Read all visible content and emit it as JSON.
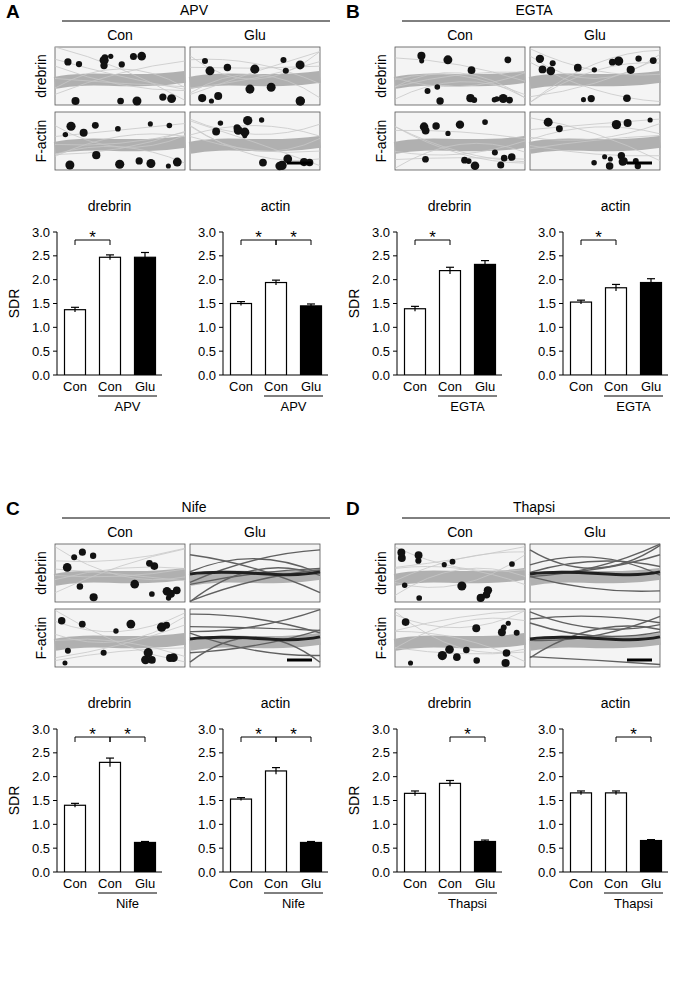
{
  "panels": [
    {
      "letter": "A",
      "treatment": "APV",
      "columns": [
        "Con",
        "Glu"
      ],
      "rows": [
        "drebrin",
        "F-actin"
      ]
    },
    {
      "letter": "B",
      "treatment": "EGTA",
      "columns": [
        "Con",
        "Glu"
      ],
      "rows": [
        "drebrin",
        "F-actin"
      ]
    },
    {
      "letter": "C",
      "treatment": "Nife",
      "columns": [
        "Con",
        "Glu"
      ],
      "rows": [
        "drebrin",
        "F-actin"
      ]
    },
    {
      "letter": "D",
      "treatment": "Thapsi",
      "columns": [
        "Con",
        "Glu"
      ],
      "rows": [
        "drebrin",
        "F-actin"
      ]
    }
  ],
  "chart_data": [
    {
      "type": "bar",
      "title": "drebrin",
      "y_label": "SDR",
      "categories": [
        "Con",
        "Con",
        "Glu"
      ],
      "values": [
        1.37,
        2.47,
        2.47
      ],
      "errors": [
        0.05,
        0.05,
        0.1
      ],
      "colors": [
        "#ffffff",
        "#ffffff",
        "#000000"
      ],
      "group": {
        "label": "APV",
        "from": 1,
        "to": 2
      },
      "annotations": [
        {
          "from": 0,
          "to": 1,
          "label": "*"
        }
      ],
      "ylim": [
        0,
        3
      ],
      "yticks": [
        {
          "value": 0,
          "label": "0.0"
        },
        0.5,
        {
          "value": 1,
          "label": "1.0"
        },
        1.5,
        {
          "value": 2,
          "label": "2.0"
        },
        2.5,
        {
          "value": 3,
          "label": "3.0"
        }
      ]
    },
    {
      "type": "bar",
      "title": "actin",
      "categories": [
        "Con",
        "Con",
        "Glu"
      ],
      "values": [
        1.5,
        1.94,
        1.45
      ],
      "errors": [
        0.04,
        0.05,
        0.04
      ],
      "colors": [
        "#ffffff",
        "#ffffff",
        "#000000"
      ],
      "group": {
        "label": "APV",
        "from": 1,
        "to": 2
      },
      "annotations": [
        {
          "from": 0,
          "to": 1,
          "label": "*"
        },
        {
          "from": 1,
          "to": 2,
          "label": "*"
        }
      ],
      "ylim": [
        0,
        3
      ],
      "yticks": [
        {
          "value": 0,
          "label": "0.0"
        },
        0.5,
        {
          "value": 1,
          "label": "1.0"
        },
        1.5,
        {
          "value": 2,
          "label": "2.0"
        },
        2.5,
        {
          "value": 3,
          "label": "3.0"
        }
      ]
    },
    {
      "type": "bar",
      "title": "drebrin",
      "y_label": "SDR",
      "categories": [
        "Con",
        "Con",
        "Glu"
      ],
      "values": [
        1.39,
        2.19,
        2.32
      ],
      "errors": [
        0.05,
        0.07,
        0.08
      ],
      "colors": [
        "#ffffff",
        "#ffffff",
        "#000000"
      ],
      "group": {
        "label": "EGTA",
        "from": 1,
        "to": 2
      },
      "annotations": [
        {
          "from": 0,
          "to": 1,
          "label": "*"
        }
      ],
      "ylim": [
        0,
        3
      ],
      "yticks": [
        {
          "value": 0,
          "label": "0.0"
        },
        0.5,
        {
          "value": 1,
          "label": "1.0"
        },
        1.5,
        {
          "value": 2,
          "label": "2.0"
        },
        2.5,
        {
          "value": 3,
          "label": "3.0"
        }
      ]
    },
    {
      "type": "bar",
      "title": "actin",
      "categories": [
        "Con",
        "Con",
        "Glu"
      ],
      "values": [
        1.53,
        1.83,
        1.94
      ],
      "errors": [
        0.04,
        0.07,
        0.08
      ],
      "colors": [
        "#ffffff",
        "#ffffff",
        "#000000"
      ],
      "group": {
        "label": "EGTA",
        "from": 1,
        "to": 2
      },
      "annotations": [
        {
          "from": 0,
          "to": 1,
          "label": "*"
        }
      ],
      "ylim": [
        0,
        3
      ],
      "yticks": [
        {
          "value": 0,
          "label": "0.0"
        },
        0.5,
        {
          "value": 1,
          "label": "1.0"
        },
        1.5,
        {
          "value": 2,
          "label": "2.0"
        },
        2.5,
        {
          "value": 3,
          "label": "3.0"
        }
      ]
    },
    {
      "type": "bar",
      "title": "drebrin",
      "y_label": "SDR",
      "categories": [
        "Con",
        "Con",
        "Glu"
      ],
      "values": [
        1.4,
        2.3,
        0.62
      ],
      "errors": [
        0.04,
        0.09,
        0.02
      ],
      "colors": [
        "#ffffff",
        "#ffffff",
        "#000000"
      ],
      "group": {
        "label": "Nife",
        "from": 1,
        "to": 2
      },
      "annotations": [
        {
          "from": 0,
          "to": 1,
          "label": "*"
        },
        {
          "from": 1,
          "to": 2,
          "label": "*"
        }
      ],
      "ylim": [
        0,
        3
      ],
      "yticks": [
        {
          "value": 0,
          "label": "0.0"
        },
        0.5,
        {
          "value": 1,
          "label": "1.0"
        },
        1.5,
        {
          "value": 2,
          "label": "2.0"
        },
        2.5,
        {
          "value": 3,
          "label": "3.0"
        }
      ]
    },
    {
      "type": "bar",
      "title": "actin",
      "categories": [
        "Con",
        "Con",
        "Glu"
      ],
      "values": [
        1.53,
        2.12,
        0.62
      ],
      "errors": [
        0.03,
        0.07,
        0.02
      ],
      "colors": [
        "#ffffff",
        "#ffffff",
        "#000000"
      ],
      "group": {
        "label": "Nife",
        "from": 1,
        "to": 2
      },
      "annotations": [
        {
          "from": 0,
          "to": 1,
          "label": "*"
        },
        {
          "from": 1,
          "to": 2,
          "label": "*"
        }
      ],
      "ylim": [
        0,
        3
      ],
      "yticks": [
        {
          "value": 0,
          "label": "0.0"
        },
        0.5,
        {
          "value": 1,
          "label": "1.0"
        },
        1.5,
        {
          "value": 2,
          "label": "2.0"
        },
        2.5,
        {
          "value": 3,
          "label": "3.0"
        }
      ]
    },
    {
      "type": "bar",
      "title": "drebrin",
      "y_label": "SDR",
      "categories": [
        "Con",
        "Con",
        "Glu"
      ],
      "values": [
        1.65,
        1.86,
        0.64
      ],
      "errors": [
        0.05,
        0.06,
        0.03
      ],
      "colors": [
        "#ffffff",
        "#ffffff",
        "#000000"
      ],
      "group": {
        "label": "Thapsi",
        "from": 1,
        "to": 2
      },
      "annotations": [
        {
          "from": 1,
          "to": 2,
          "label": "*"
        }
      ],
      "ylim": [
        0,
        3
      ],
      "yticks": [
        {
          "value": 0,
          "label": "0.0"
        },
        0.5,
        {
          "value": 1,
          "label": "1.0"
        },
        1.5,
        {
          "value": 2,
          "label": "2.0"
        },
        2.5,
        {
          "value": 3,
          "label": "3.0"
        }
      ]
    },
    {
      "type": "bar",
      "title": "actin",
      "categories": [
        "Con",
        "Con",
        "Glu"
      ],
      "values": [
        1.66,
        1.66,
        0.66
      ],
      "errors": [
        0.04,
        0.04,
        0.02
      ],
      "colors": [
        "#ffffff",
        "#ffffff",
        "#000000"
      ],
      "group": {
        "label": "Thapsi",
        "from": 1,
        "to": 2
      },
      "annotations": [
        {
          "from": 1,
          "to": 2,
          "label": "*"
        }
      ],
      "ylim": [
        0,
        3
      ],
      "yticks": [
        {
          "value": 0,
          "label": "0.0"
        },
        0.5,
        {
          "value": 1,
          "label": "1.0"
        },
        1.5,
        {
          "value": 2,
          "label": "2.0"
        },
        2.5,
        {
          "value": 3,
          "label": "3.0"
        }
      ]
    }
  ]
}
